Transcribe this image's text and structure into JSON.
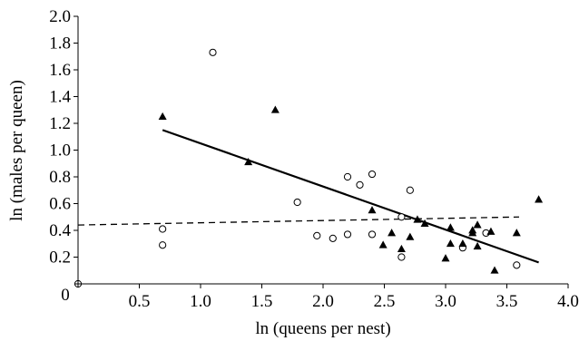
{
  "chart_data": {
    "type": "scatter",
    "title": "",
    "xlabel": "ln (queens per nest)",
    "ylabel": "ln (males per queen)",
    "xlim": [
      0,
      4.0
    ],
    "ylim": [
      0,
      2.0
    ],
    "x_ticks": [
      {
        "value": 0,
        "label": "0"
      },
      {
        "value": 0.5,
        "label": "0.5"
      },
      {
        "value": 1.0,
        "label": "1.0"
      },
      {
        "value": 1.5,
        "label": "1.5"
      },
      {
        "value": 2.0,
        "label": "2.0"
      },
      {
        "value": 2.5,
        "label": "2.5"
      },
      {
        "value": 3.0,
        "label": "3.0"
      },
      {
        "value": 3.5,
        "label": "3.5"
      },
      {
        "value": 4.0,
        "label": "4.0"
      }
    ],
    "y_ticks": [
      {
        "value": 0.2,
        "label": "0.2"
      },
      {
        "value": 0.4,
        "label": "0.4"
      },
      {
        "value": 0.6,
        "label": "0.6"
      },
      {
        "value": 0.8,
        "label": "0.8"
      },
      {
        "value": 1.0,
        "label": "1.0"
      },
      {
        "value": 1.2,
        "label": "1.2"
      },
      {
        "value": 1.4,
        "label": "1.4"
      },
      {
        "value": 1.6,
        "label": "1.6"
      },
      {
        "value": 1.8,
        "label": "1.8"
      },
      {
        "value": 2.0,
        "label": "2.0"
      }
    ],
    "grid": false,
    "series": [
      {
        "marker": "open-circle",
        "points": [
          [
            0.0,
            0.0
          ],
          [
            0.69,
            0.41
          ],
          [
            0.69,
            0.29
          ],
          [
            1.1,
            1.73
          ],
          [
            1.79,
            0.61
          ],
          [
            1.95,
            0.36
          ],
          [
            2.08,
            0.34
          ],
          [
            2.2,
            0.37
          ],
          [
            2.2,
            0.8
          ],
          [
            2.3,
            0.74
          ],
          [
            2.4,
            0.82
          ],
          [
            2.4,
            0.37
          ],
          [
            2.64,
            0.5
          ],
          [
            2.64,
            0.2
          ],
          [
            2.71,
            0.7
          ],
          [
            3.14,
            0.27
          ],
          [
            3.33,
            0.38
          ],
          [
            3.58,
            0.14
          ]
        ]
      },
      {
        "marker": "filled-triangle",
        "points": [
          [
            0.69,
            1.25
          ],
          [
            1.39,
            0.91
          ],
          [
            1.61,
            1.3
          ],
          [
            2.4,
            0.55
          ],
          [
            2.49,
            0.29
          ],
          [
            2.56,
            0.38
          ],
          [
            2.64,
            0.26
          ],
          [
            2.71,
            0.35
          ],
          [
            2.77,
            0.48
          ],
          [
            2.83,
            0.45
          ],
          [
            3.0,
            0.19
          ],
          [
            3.04,
            0.3
          ],
          [
            3.04,
            0.42
          ],
          [
            3.14,
            0.3
          ],
          [
            3.22,
            0.38
          ],
          [
            3.22,
            0.4
          ],
          [
            3.26,
            0.28
          ],
          [
            3.26,
            0.44
          ],
          [
            3.37,
            0.39
          ],
          [
            3.4,
            0.1
          ],
          [
            3.58,
            0.38
          ],
          [
            3.76,
            0.63
          ]
        ]
      }
    ],
    "fit_lines": [
      {
        "style": "solid",
        "x": [
          0.69,
          3.76
        ],
        "y": [
          1.15,
          0.16
        ]
      },
      {
        "style": "dashed",
        "x": [
          0.0,
          3.6
        ],
        "y": [
          0.44,
          0.5
        ]
      }
    ]
  }
}
